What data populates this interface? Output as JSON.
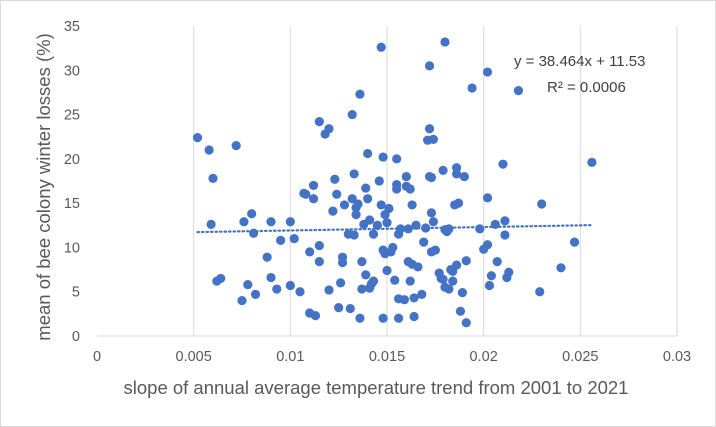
{
  "chart_data": {
    "type": "scatter",
    "title": "",
    "xlabel": "slope of annual average temperature trend from 2001 to 2021",
    "ylabel": "mean of bee colony winter losses (%)",
    "xlim": [
      0,
      0.03
    ],
    "ylim": [
      0,
      35
    ],
    "x_ticks": [
      0,
      0.005,
      0.01,
      0.015,
      0.02,
      0.025,
      0.03
    ],
    "x_tick_labels": [
      "0",
      "0.005",
      "0.01",
      "0.015",
      "0.02",
      "0.025",
      "0.03"
    ],
    "y_ticks": [
      0,
      5,
      10,
      15,
      20,
      25,
      30,
      35
    ],
    "y_tick_labels": [
      "0",
      "5",
      "10",
      "15",
      "20",
      "25",
      "30",
      "35"
    ],
    "grid": "vertical",
    "legend": "none",
    "marker_color": "#4472C4",
    "trendline": {
      "type": "linear",
      "slope": 38.464,
      "intercept": 11.53,
      "x_range": [
        0.0052,
        0.0256
      ],
      "style": "dotted",
      "color": "#4472C4",
      "equation_label": "y = 38.464x + 11.53",
      "r2_label": "R² = 0.0006"
    },
    "points": [
      [
        0.0052,
        22.4
      ],
      [
        0.0058,
        21.0
      ],
      [
        0.0059,
        12.6
      ],
      [
        0.006,
        17.8
      ],
      [
        0.0062,
        6.2
      ],
      [
        0.0064,
        6.5
      ],
      [
        0.0072,
        21.5
      ],
      [
        0.0075,
        4.0
      ],
      [
        0.0076,
        12.9
      ],
      [
        0.0078,
        5.8
      ],
      [
        0.008,
        13.8
      ],
      [
        0.0081,
        11.6
      ],
      [
        0.0082,
        4.7
      ],
      [
        0.0088,
        8.9
      ],
      [
        0.009,
        6.6
      ],
      [
        0.009,
        12.9
      ],
      [
        0.0093,
        5.3
      ],
      [
        0.0095,
        10.8
      ],
      [
        0.01,
        5.7
      ],
      [
        0.01,
        12.9
      ],
      [
        0.0102,
        11.0
      ],
      [
        0.0105,
        5.0
      ],
      [
        0.0107,
        16.1
      ],
      [
        0.0108,
        16.0
      ],
      [
        0.011,
        9.5
      ],
      [
        0.011,
        2.6
      ],
      [
        0.0112,
        15.5
      ],
      [
        0.0112,
        17.0
      ],
      [
        0.0113,
        2.3
      ],
      [
        0.0115,
        24.2
      ],
      [
        0.0115,
        8.4
      ],
      [
        0.0115,
        10.2
      ],
      [
        0.0118,
        22.8
      ],
      [
        0.012,
        23.4
      ],
      [
        0.012,
        5.2
      ],
      [
        0.0122,
        14.1
      ],
      [
        0.0123,
        17.7
      ],
      [
        0.0124,
        16.0
      ],
      [
        0.0125,
        3.2
      ],
      [
        0.0126,
        6.0
      ],
      [
        0.0127,
        8.3
      ],
      [
        0.0127,
        8.9
      ],
      [
        0.0128,
        14.8
      ],
      [
        0.013,
        11.5
      ],
      [
        0.0131,
        3.1
      ],
      [
        0.0132,
        15.5
      ],
      [
        0.0132,
        25.0
      ],
      [
        0.0133,
        11.4
      ],
      [
        0.0133,
        18.3
      ],
      [
        0.0134,
        14.5
      ],
      [
        0.0134,
        13.7
      ],
      [
        0.0135,
        14.9
      ],
      [
        0.0136,
        27.3
      ],
      [
        0.0136,
        2.0
      ],
      [
        0.0137,
        5.3
      ],
      [
        0.0137,
        8.4
      ],
      [
        0.0138,
        12.6
      ],
      [
        0.0139,
        6.9
      ],
      [
        0.0139,
        16.7
      ],
      [
        0.014,
        15.5
      ],
      [
        0.014,
        20.6
      ],
      [
        0.0141,
        13.1
      ],
      [
        0.0141,
        5.4
      ],
      [
        0.0142,
        5.9
      ],
      [
        0.0143,
        11.5
      ],
      [
        0.0143,
        6.2
      ],
      [
        0.0145,
        12.5
      ],
      [
        0.0146,
        17.5
      ],
      [
        0.0147,
        32.6
      ],
      [
        0.0147,
        14.8
      ],
      [
        0.0148,
        20.2
      ],
      [
        0.0148,
        9.7
      ],
      [
        0.0148,
        2.0
      ],
      [
        0.0149,
        13.7
      ],
      [
        0.0149,
        9.3
      ],
      [
        0.015,
        12.8
      ],
      [
        0.015,
        7.4
      ],
      [
        0.0151,
        14.4
      ],
      [
        0.0152,
        9.5
      ],
      [
        0.0153,
        10.0
      ],
      [
        0.0154,
        6.3
      ],
      [
        0.0155,
        20.0
      ],
      [
        0.0155,
        17.1
      ],
      [
        0.0155,
        16.6
      ],
      [
        0.0156,
        11.5
      ],
      [
        0.0156,
        4.2
      ],
      [
        0.0156,
        2.0
      ],
      [
        0.0157,
        12.1
      ],
      [
        0.0159,
        4.1
      ],
      [
        0.016,
        18.0
      ],
      [
        0.016,
        16.9
      ],
      [
        0.0161,
        12.1
      ],
      [
        0.0161,
        8.4
      ],
      [
        0.0162,
        6.2
      ],
      [
        0.0162,
        16.6
      ],
      [
        0.0163,
        14.8
      ],
      [
        0.0163,
        8.1
      ],
      [
        0.0164,
        4.3
      ],
      [
        0.0164,
        2.2
      ],
      [
        0.0165,
        12.5
      ],
      [
        0.0166,
        7.8
      ],
      [
        0.0168,
        4.7
      ],
      [
        0.0169,
        10.6
      ],
      [
        0.017,
        12.2
      ],
      [
        0.0171,
        22.1
      ],
      [
        0.0172,
        30.5
      ],
      [
        0.0172,
        23.4
      ],
      [
        0.0172,
        18.0
      ],
      [
        0.0173,
        17.9
      ],
      [
        0.0173,
        13.9
      ],
      [
        0.0173,
        9.5
      ],
      [
        0.0174,
        22.2
      ],
      [
        0.0174,
        12.9
      ],
      [
        0.0175,
        9.7
      ],
      [
        0.0177,
        7.1
      ],
      [
        0.0178,
        6.5
      ],
      [
        0.0179,
        6.4
      ],
      [
        0.0179,
        18.7
      ],
      [
        0.018,
        33.2
      ],
      [
        0.018,
        5.5
      ],
      [
        0.018,
        12.0
      ],
      [
        0.0181,
        11.8
      ],
      [
        0.0182,
        5.3
      ],
      [
        0.0182,
        12.1
      ],
      [
        0.0183,
        7.5
      ],
      [
        0.0184,
        7.3
      ],
      [
        0.0184,
        6.2
      ],
      [
        0.0185,
        14.8
      ],
      [
        0.0186,
        19.0
      ],
      [
        0.0186,
        18.3
      ],
      [
        0.0186,
        8.0
      ],
      [
        0.0187,
        15.0
      ],
      [
        0.0188,
        2.8
      ],
      [
        0.0189,
        4.9
      ],
      [
        0.019,
        18.0
      ],
      [
        0.0191,
        8.5
      ],
      [
        0.0191,
        1.5
      ],
      [
        0.0194,
        28.0
      ],
      [
        0.0198,
        12.1
      ],
      [
        0.02,
        9.8
      ],
      [
        0.0202,
        29.8
      ],
      [
        0.0202,
        15.6
      ],
      [
        0.0202,
        10.3
      ],
      [
        0.0203,
        5.7
      ],
      [
        0.0204,
        6.8
      ],
      [
        0.0206,
        12.6
      ],
      [
        0.0207,
        8.4
      ],
      [
        0.021,
        19.4
      ],
      [
        0.0211,
        13.0
      ],
      [
        0.0211,
        11.4
      ],
      [
        0.0212,
        6.6
      ],
      [
        0.0213,
        7.2
      ],
      [
        0.0218,
        27.7
      ],
      [
        0.0229,
        5.0
      ],
      [
        0.023,
        14.9
      ],
      [
        0.024,
        7.7
      ],
      [
        0.0247,
        10.6
      ],
      [
        0.0256,
        19.6
      ]
    ]
  }
}
